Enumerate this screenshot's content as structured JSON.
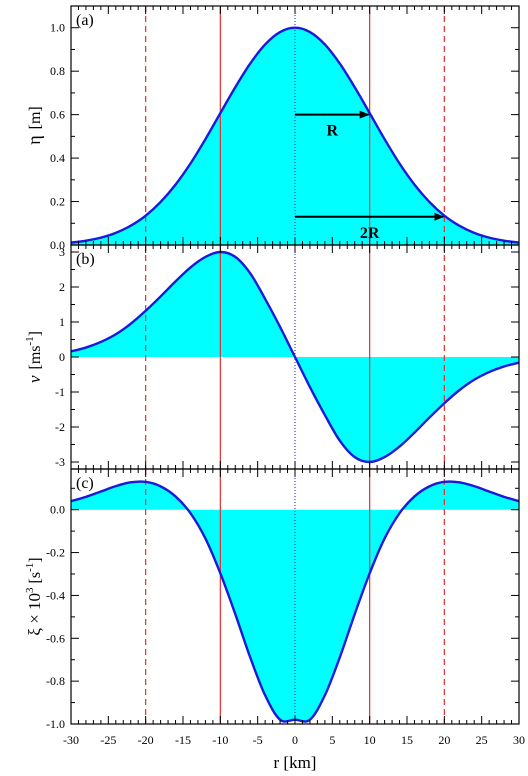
{
  "chart_data": [
    {
      "type": "area",
      "panel_label": "(a)",
      "ylabel": "η [m]",
      "ylabel_parts": {
        "symbol": "η",
        "unit": "[m]"
      },
      "xlim": [
        -30,
        30
      ],
      "ylim": [
        0,
        1.1
      ],
      "yticks": [
        0,
        0.2,
        0.4,
        0.6,
        0.8,
        1.0
      ],
      "ytick_labels": [
        "0.0",
        "0.2",
        "0.4",
        "0.6",
        "0.8",
        "1.0"
      ],
      "x": [
        -30,
        -28,
        -26,
        -24,
        -22,
        -20,
        -18,
        -16,
        -14,
        -12,
        -10,
        -8,
        -6,
        -4,
        -2,
        0,
        2,
        4,
        6,
        8,
        10,
        12,
        14,
        16,
        18,
        20,
        22,
        24,
        26,
        28,
        30
      ],
      "values": [
        0.011,
        0.02,
        0.034,
        0.056,
        0.089,
        0.135,
        0.198,
        0.278,
        0.375,
        0.487,
        0.607,
        0.726,
        0.835,
        0.923,
        0.98,
        1.0,
        0.98,
        0.923,
        0.835,
        0.726,
        0.607,
        0.487,
        0.375,
        0.278,
        0.198,
        0.135,
        0.089,
        0.056,
        0.034,
        0.02,
        0.011
      ],
      "annotations": [
        {
          "text": "R",
          "x_from": 0,
          "x_to": 10,
          "y": 0.6
        },
        {
          "text": "2R",
          "x_from": 0,
          "x_to": 20,
          "y": 0.13
        }
      ]
    },
    {
      "type": "area",
      "panel_label": "(b)",
      "ylabel": "v [ms-1]",
      "ylabel_parts": {
        "symbol": "v",
        "unit_base": "[ms",
        "unit_sup": "-1",
        "unit_end": "]"
      },
      "xlim": [
        -30,
        30
      ],
      "ylim": [
        -3.2,
        3.2
      ],
      "yticks": [
        -3,
        -2,
        -1,
        0,
        1,
        2,
        3
      ],
      "ytick_labels": [
        "-3",
        "-2",
        "-1",
        "0",
        "1",
        "2",
        "3"
      ],
      "x": [
        -30,
        -28,
        -26,
        -24,
        -22,
        -20,
        -18,
        -16,
        -14,
        -12,
        -10,
        -8,
        -6,
        -4,
        -2,
        0,
        2,
        4,
        6,
        8,
        10,
        12,
        14,
        16,
        18,
        20,
        22,
        24,
        26,
        28,
        30
      ],
      "values": [
        0.16,
        0.27,
        0.43,
        0.65,
        0.95,
        1.32,
        1.73,
        2.16,
        2.56,
        2.86,
        3.0,
        2.86,
        2.39,
        1.66,
        0.86,
        0,
        -0.86,
        -1.66,
        -2.39,
        -2.86,
        -3.0,
        -2.86,
        -2.56,
        -2.16,
        -1.73,
        -1.32,
        -0.95,
        -0.65,
        -0.43,
        -0.27,
        -0.16
      ]
    },
    {
      "type": "area",
      "panel_label": "(c)",
      "ylabel": "ξ × 10^3 [s-1]",
      "ylabel_parts": {
        "symbol": "ξ × 10",
        "sup1": "3",
        "unit_base": " [s",
        "unit_sup": "-1",
        "unit_end": "]"
      },
      "xlim": [
        -30,
        30
      ],
      "ylim": [
        -1.0,
        0.19
      ],
      "yticks": [
        -1.0,
        -0.8,
        -0.6,
        -0.4,
        -0.2,
        0.0
      ],
      "ytick_labels": [
        "-1.0",
        "-0.8",
        "-0.6",
        "-0.4",
        "-0.2",
        "0.0"
      ],
      "x": [
        -30,
        -28,
        -26,
        -24,
        -22,
        -20,
        -18,
        -16,
        -14,
        -12,
        -10,
        -8,
        -6,
        -4,
        -2,
        0,
        2,
        4,
        6,
        8,
        10,
        12,
        14,
        16,
        18,
        20,
        22,
        24,
        26,
        28,
        30
      ],
      "values": [
        0.04,
        0.06,
        0.085,
        0.11,
        0.128,
        0.13,
        0.109,
        0.062,
        -0.016,
        -0.134,
        -0.297,
        -0.487,
        -0.689,
        -0.866,
        -0.98,
        -0.98,
        -0.98,
        -0.866,
        -0.689,
        -0.487,
        -0.297,
        -0.134,
        -0.016,
        0.062,
        0.109,
        0.13,
        0.128,
        0.11,
        0.085,
        0.06,
        0.04
      ]
    }
  ],
  "x_axis": {
    "xlabel": "r [km]",
    "xticks": [
      -30,
      -25,
      -20,
      -15,
      -10,
      -5,
      0,
      5,
      10,
      15,
      20,
      25,
      30
    ],
    "xtick_labels": [
      "-30",
      "-25",
      "-20",
      "-15",
      "-10",
      "-5",
      "0",
      "5",
      "10",
      "15",
      "20",
      "25",
      "30"
    ]
  },
  "reference_lines": {
    "solid_red_x": [
      -10,
      10
    ],
    "dashed_red_x": [
      -20,
      20
    ],
    "dotted_blue_x": [
      0
    ]
  },
  "colors": {
    "fill": "#00ffff",
    "curve": "#1a1adb",
    "reference": "#e03030",
    "axis": "#000000"
  }
}
